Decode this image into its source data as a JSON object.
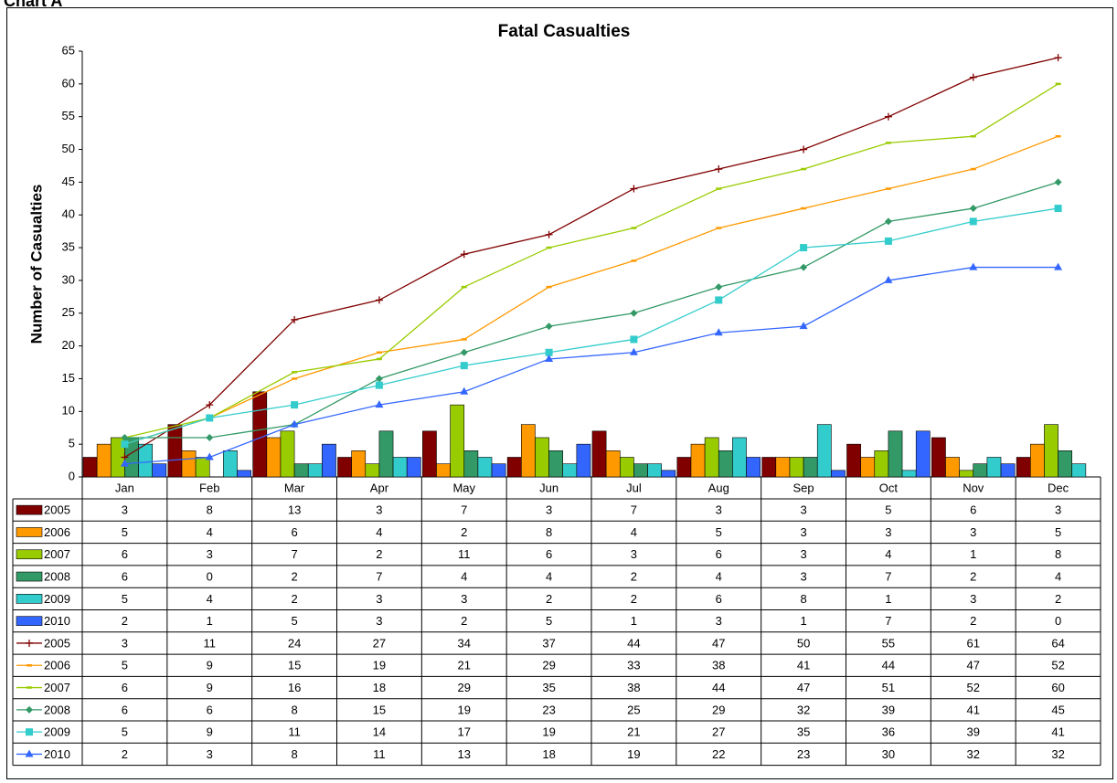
{
  "header": "Chart A",
  "chart_data": {
    "type": "combo",
    "title": "Fatal Casualties",
    "y_label": "Number of Casualties",
    "categories": [
      "Jan",
      "Feb",
      "Mar",
      "Apr",
      "May",
      "Jun",
      "Jul",
      "Aug",
      "Sep",
      "Oct",
      "Nov",
      "Dec"
    ],
    "ylim": [
      0,
      65
    ],
    "yticks": [
      0,
      5,
      10,
      15,
      20,
      25,
      30,
      35,
      40,
      45,
      50,
      55,
      60,
      65
    ],
    "series": [
      {
        "name": "2005",
        "type": "bar",
        "color": "#800000",
        "values": [
          3,
          8,
          13,
          3,
          7,
          3,
          7,
          3,
          3,
          5,
          6,
          3
        ]
      },
      {
        "name": "2006",
        "type": "bar",
        "color": "#ff9900",
        "values": [
          5,
          4,
          6,
          4,
          2,
          8,
          4,
          5,
          3,
          3,
          3,
          5
        ]
      },
      {
        "name": "2007",
        "type": "bar",
        "color": "#99cc00",
        "values": [
          6,
          3,
          7,
          2,
          11,
          6,
          3,
          6,
          3,
          4,
          1,
          8
        ]
      },
      {
        "name": "2008",
        "type": "bar",
        "color": "#339966",
        "values": [
          6,
          0,
          2,
          7,
          4,
          4,
          2,
          4,
          3,
          7,
          2,
          4
        ]
      },
      {
        "name": "2009",
        "type": "bar",
        "color": "#33cccc",
        "values": [
          5,
          4,
          2,
          3,
          3,
          2,
          2,
          6,
          8,
          1,
          3,
          2
        ]
      },
      {
        "name": "2010",
        "type": "bar",
        "color": "#3366ff",
        "values": [
          2,
          1,
          5,
          3,
          2,
          5,
          1,
          3,
          1,
          7,
          2,
          0
        ]
      },
      {
        "name": "2005",
        "type": "line",
        "marker": "plus",
        "color": "#800000",
        "values": [
          3,
          11,
          24,
          27,
          34,
          37,
          44,
          47,
          50,
          55,
          61,
          64
        ]
      },
      {
        "name": "2006",
        "type": "line",
        "marker": "dash",
        "color": "#ff9900",
        "values": [
          5,
          9,
          15,
          19,
          21,
          29,
          33,
          38,
          41,
          44,
          47,
          52
        ]
      },
      {
        "name": "2007",
        "type": "line",
        "marker": "dash",
        "color": "#99cc00",
        "values": [
          6,
          9,
          16,
          18,
          29,
          35,
          38,
          44,
          47,
          51,
          52,
          60
        ]
      },
      {
        "name": "2008",
        "type": "line",
        "marker": "diamond",
        "color": "#339966",
        "values": [
          6,
          6,
          8,
          15,
          19,
          23,
          25,
          29,
          32,
          39,
          41,
          45
        ]
      },
      {
        "name": "2009",
        "type": "line",
        "marker": "square",
        "color": "#33cccc",
        "values": [
          5,
          9,
          11,
          14,
          17,
          19,
          21,
          27,
          35,
          36,
          39,
          41
        ]
      },
      {
        "name": "2010",
        "type": "line",
        "marker": "triangle",
        "color": "#3366ff",
        "values": [
          2,
          3,
          8,
          11,
          13,
          18,
          19,
          22,
          23,
          30,
          32,
          32
        ]
      }
    ]
  }
}
